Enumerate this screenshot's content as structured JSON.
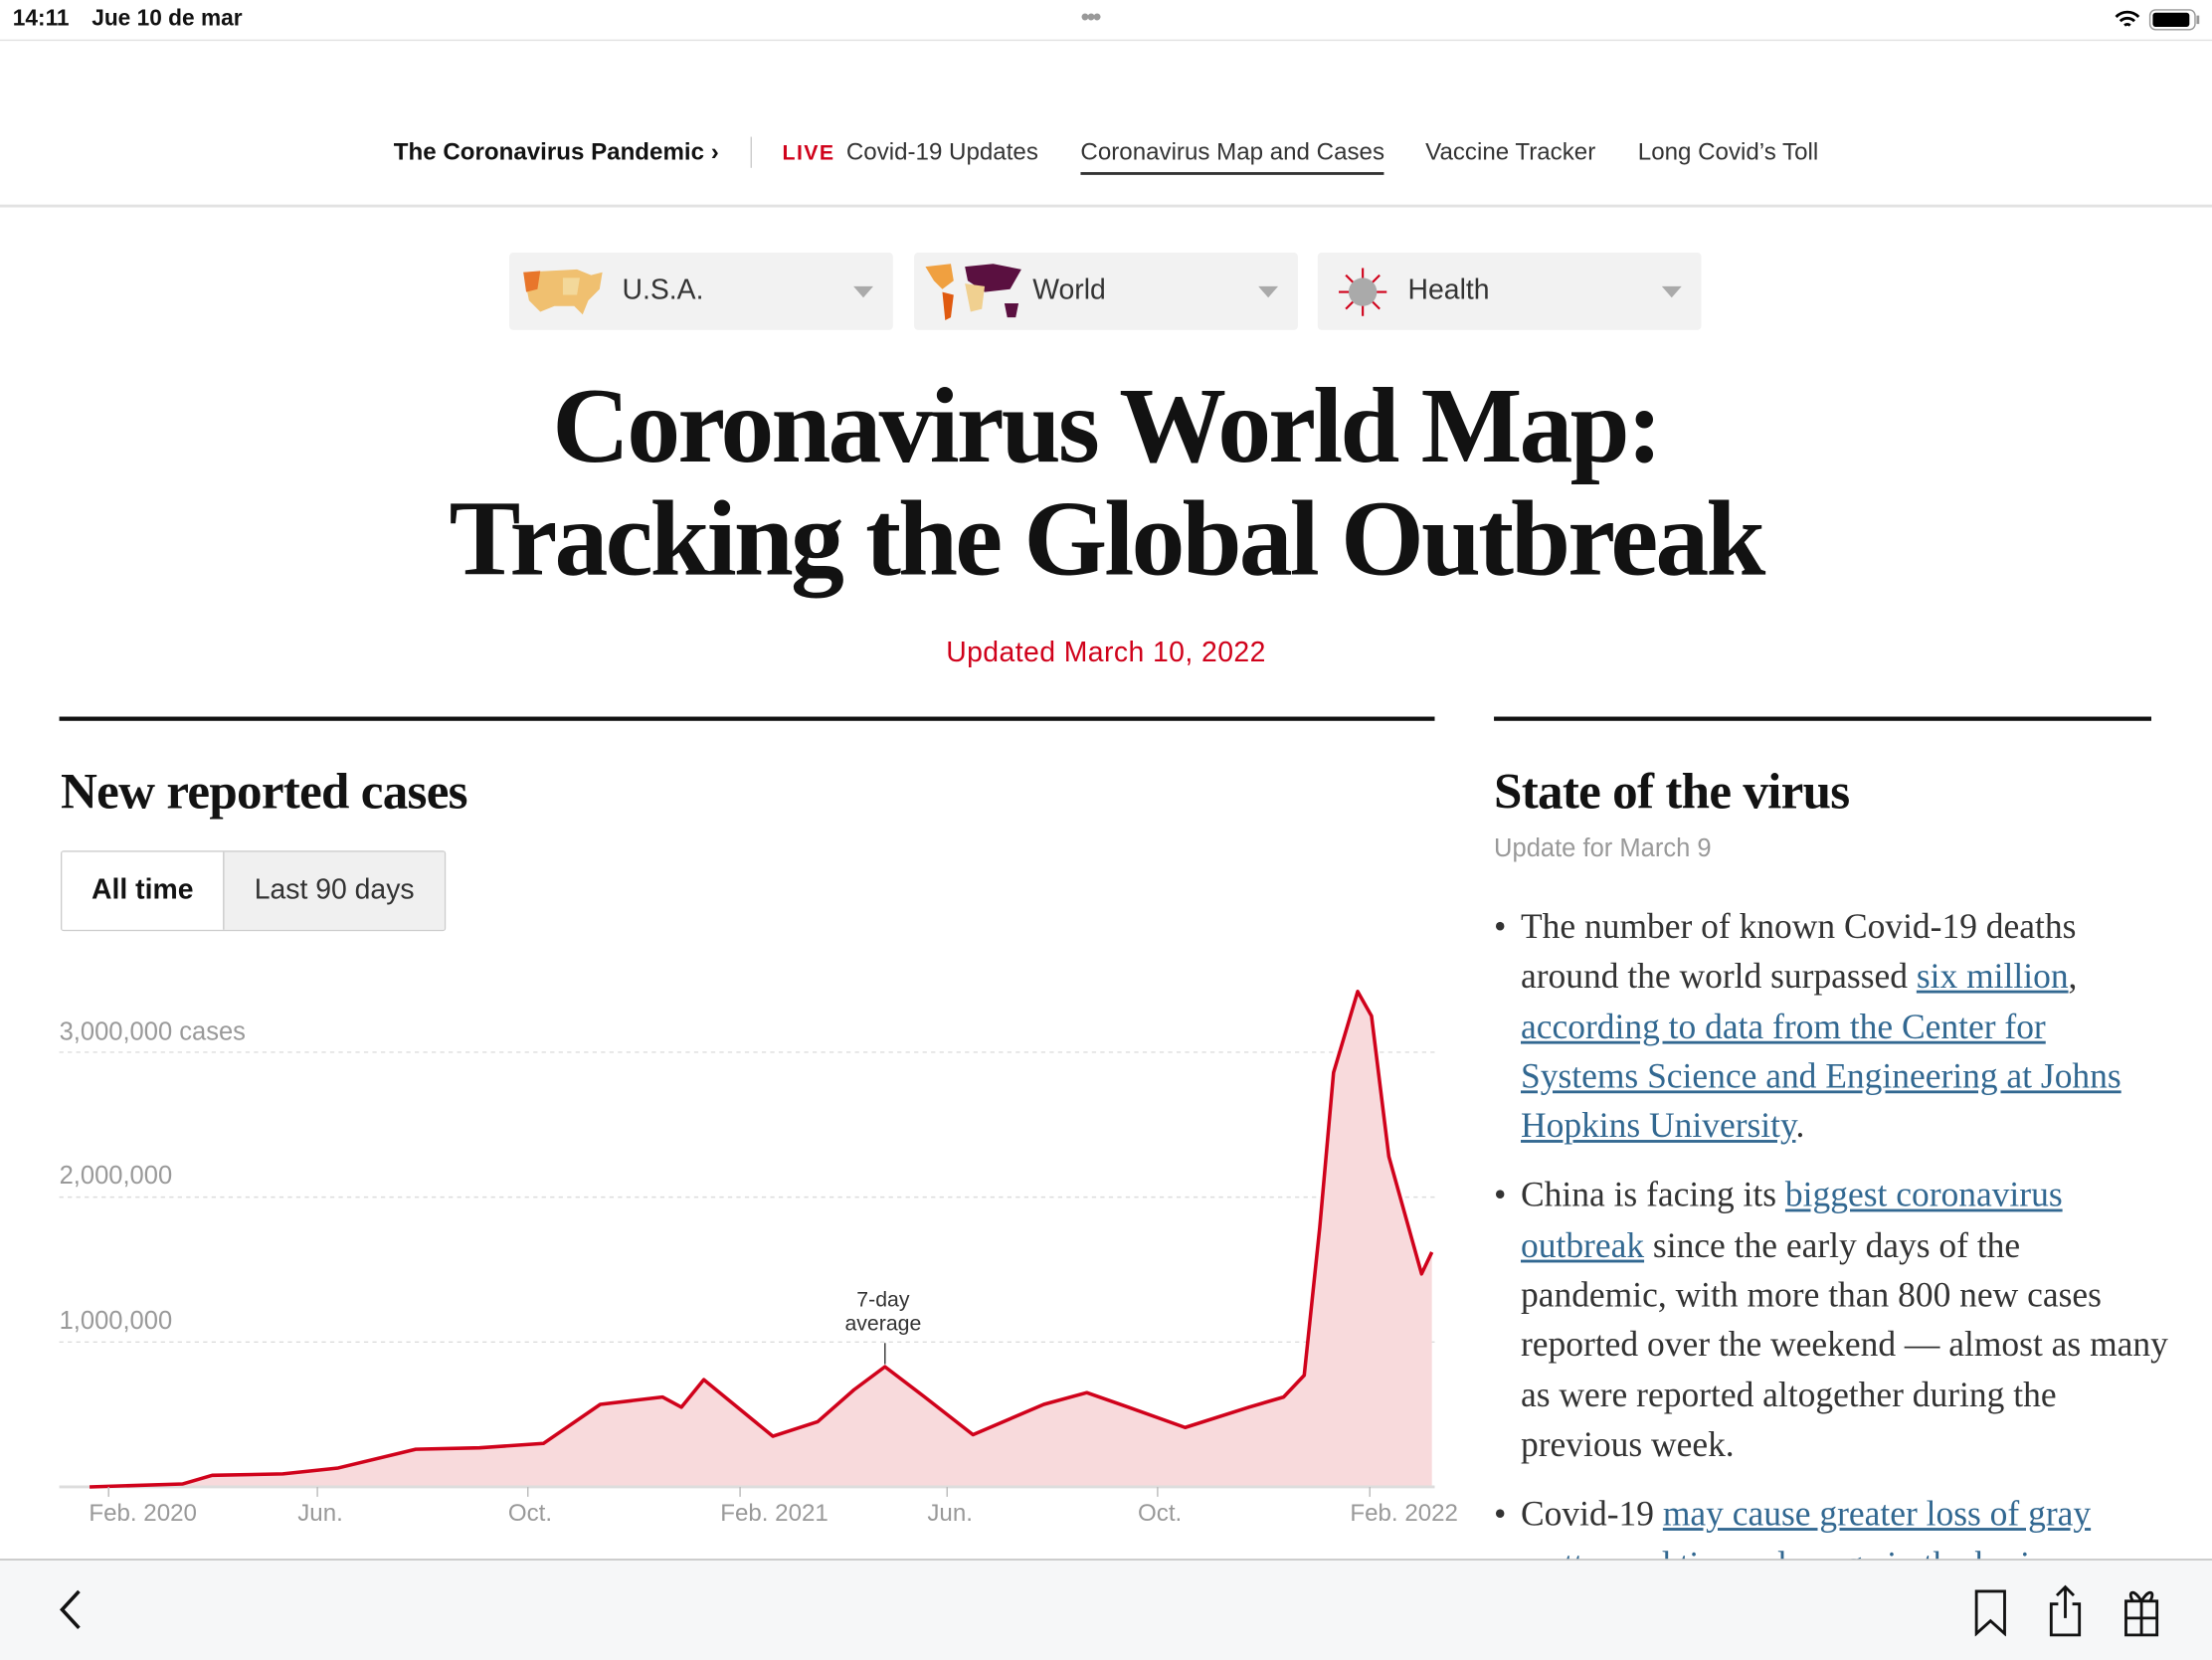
{
  "status_bar": {
    "time": "14:11",
    "date": "Jue 10 de mar",
    "dots": "•••",
    "wifi_icon": "wifi-icon",
    "battery_icon": "battery-icon"
  },
  "nav": {
    "section": "The Coronavirus Pandemic ›",
    "live_badge": "LIVE",
    "items": [
      "Covid-19 Updates",
      "Coronavirus Map and Cases",
      "Vaccine Tracker",
      "Long Covid’s Toll"
    ],
    "active_index": 1
  },
  "dropdowns": [
    {
      "label": "U.S.A.",
      "icon": "usa-map-icon"
    },
    {
      "label": "World",
      "icon": "world-map-icon"
    },
    {
      "label": "Health",
      "icon": "virus-icon"
    }
  ],
  "headline": {
    "line1": "Coronavirus World Map:",
    "line2": "Tracking the Global Outbreak"
  },
  "updated": "Updated March 10, 2022",
  "colors": {
    "accent_red": "#d0021b",
    "line": "#d0021b",
    "fill": "#f8dadc",
    "link": "#326891"
  },
  "cases": {
    "heading": "New reported cases",
    "tabs": [
      "All time",
      "Last 90 days"
    ],
    "active_tab": 0
  },
  "chart_data": {
    "type": "area",
    "ylim": [
      0,
      3500000
    ],
    "y_ticks": [
      {
        "value": 1000000,
        "label": "1,000,000"
      },
      {
        "value": 2000000,
        "label": "2,000,000"
      },
      {
        "value": 3000000,
        "label": "3,000,000 cases"
      }
    ],
    "x_ticks": [
      {
        "date": "2020-02-01",
        "label": "Feb. 2020"
      },
      {
        "date": "2020-06-01",
        "label": "Jun."
      },
      {
        "date": "2020-10-01",
        "label": "Oct."
      },
      {
        "date": "2021-02-01",
        "label": "Feb. 2021"
      },
      {
        "date": "2021-06-01",
        "label": "Jun."
      },
      {
        "date": "2021-10-01",
        "label": "Oct."
      },
      {
        "date": "2022-02-01",
        "label": "Feb. 2022"
      }
    ],
    "annotation": {
      "line1": "7-day",
      "line2": "average",
      "date": "2021-04-26"
    },
    "grid": true,
    "series": [
      {
        "points": [
          [
            "2020-01-21",
            0
          ],
          [
            "2020-03-15",
            20000
          ],
          [
            "2020-04-01",
            80000
          ],
          [
            "2020-05-12",
            90000
          ],
          [
            "2020-06-13",
            130000
          ],
          [
            "2020-07-28",
            260000
          ],
          [
            "2020-09-03",
            270000
          ],
          [
            "2020-10-10",
            300000
          ],
          [
            "2020-11-12",
            570000
          ],
          [
            "2020-12-18",
            620000
          ],
          [
            "2020-12-29",
            550000
          ],
          [
            "2021-01-11",
            740000
          ],
          [
            "2021-02-20",
            350000
          ],
          [
            "2021-03-18",
            450000
          ],
          [
            "2021-04-08",
            670000
          ],
          [
            "2021-04-26",
            830000
          ],
          [
            "2021-05-19",
            620000
          ],
          [
            "2021-06-16",
            360000
          ],
          [
            "2021-07-27",
            570000
          ],
          [
            "2021-08-21",
            650000
          ],
          [
            "2021-09-14",
            550000
          ],
          [
            "2021-10-17",
            410000
          ],
          [
            "2021-11-23",
            550000
          ],
          [
            "2021-12-13",
            620000
          ],
          [
            "2021-12-25",
            770000
          ],
          [
            "2022-01-03",
            1790000
          ],
          [
            "2022-01-11",
            2860000
          ],
          [
            "2022-01-25",
            3420000
          ],
          [
            "2022-02-02",
            3250000
          ],
          [
            "2022-02-12",
            2280000
          ],
          [
            "2022-03-03",
            1470000
          ],
          [
            "2022-03-09",
            1620000
          ]
        ]
      }
    ]
  },
  "state": {
    "heading": "State of the virus",
    "subheading": "Update for March 9",
    "bullets": [
      {
        "pre": "The number of known Covid-19 deaths around the world surpassed ",
        "link1": "six million",
        "mid": ", ",
        "link2": "according to data from the Center for Systems Science and Engineering at Johns Hopkins University",
        "post": "."
      },
      {
        "pre": "China is facing its ",
        "link1": "biggest coronavirus outbreak",
        "mid": " since the early days of the pandemic, with more than 800 new cases reported over the weekend — almost as many as were reported altogether during the previous week.",
        "link2": "",
        "post": ""
      },
      {
        "pre": "Covid-19 ",
        "link1": "may cause greater loss of gray matter and tissue damage in the brain",
        "mid": "",
        "link2": "",
        "post": ""
      }
    ]
  },
  "toolbar": {
    "back_icon": "chevron-left-icon",
    "bookmark_icon": "bookmark-icon",
    "share_icon": "share-icon",
    "gift_icon": "gift-icon"
  }
}
